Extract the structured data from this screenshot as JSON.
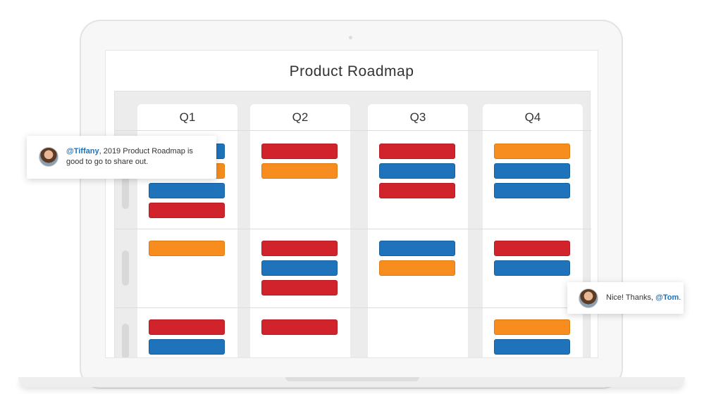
{
  "app": {
    "title": "Product Roadmap"
  },
  "columns": [
    {
      "label": "Q1"
    },
    {
      "label": "Q2"
    },
    {
      "label": "Q3"
    },
    {
      "label": "Q4"
    }
  ],
  "rows": [
    {
      "cells": [
        [
          "blue",
          "orange",
          "blue",
          "red"
        ],
        [
          "red",
          "orange"
        ],
        [
          "red",
          "blue",
          "red"
        ],
        [
          "orange",
          "blue",
          "blue"
        ]
      ]
    },
    {
      "cells": [
        [
          "orange"
        ],
        [
          "red",
          "blue",
          "red"
        ],
        [
          "blue",
          "orange"
        ],
        [
          "red",
          "blue"
        ]
      ]
    },
    {
      "cells": [
        [
          "red",
          "blue"
        ],
        [
          "red"
        ],
        [],
        [
          "orange",
          "blue"
        ]
      ]
    }
  ],
  "colors": {
    "red": "#d0232b",
    "orange": "#f68d1e",
    "blue": "#1f73bb",
    "mention": "#1f73bb"
  },
  "comments": [
    {
      "mention": "@Tiffany",
      "text": ", 2019 Product Roadmap is good to go to share out.",
      "avatar_icon": "user-avatar-icon"
    },
    {
      "text": "Nice! Thanks, ",
      "mention": "@Tom",
      "suffix": ".",
      "avatar_icon": "user-avatar-icon"
    }
  ]
}
